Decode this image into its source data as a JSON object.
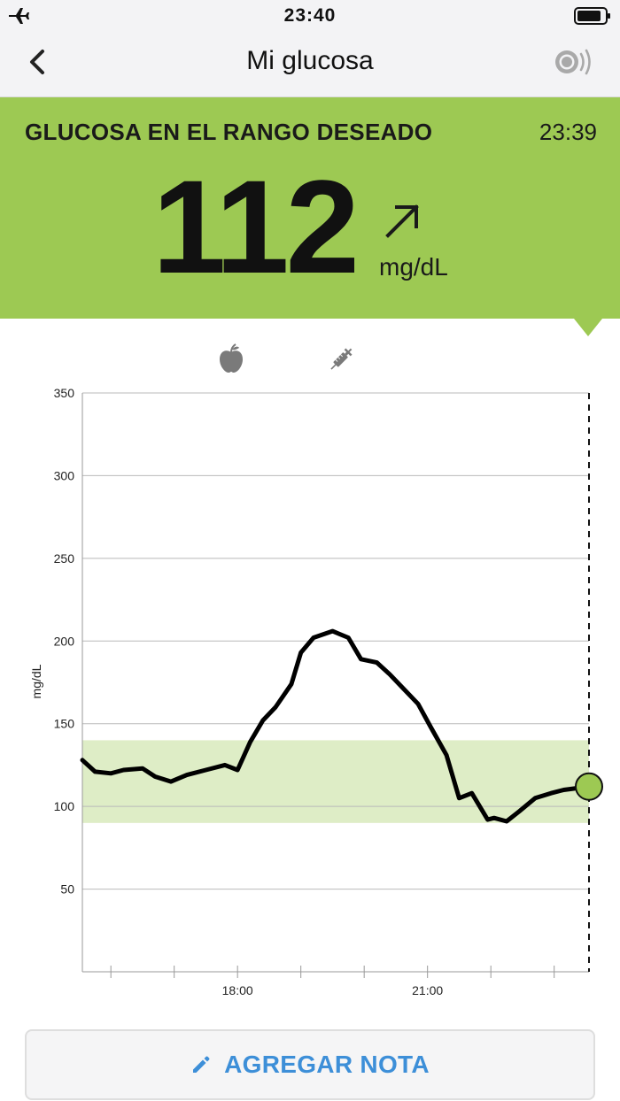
{
  "status_bar": {
    "time": "23:40"
  },
  "nav": {
    "title": "Mi glucosa"
  },
  "banner": {
    "label": "GLUCOSA EN EL RANGO DESEADO",
    "time": "23:39",
    "value": "112",
    "unit": "mg/dL",
    "trend": "rising-arrow"
  },
  "colors": {
    "banner": "#9dc953",
    "target_band": "#deedc6",
    "accent": "#3d8fd8"
  },
  "icons": [
    "airplane-icon",
    "battery-icon",
    "back-icon",
    "sensor-icon",
    "trend-arrow-icon",
    "apple-icon",
    "syringe-icon",
    "pencil-icon"
  ],
  "chart_data": {
    "type": "line",
    "ylabel": "mg/dL",
    "ylim": [
      0,
      350
    ],
    "yticks": [
      50,
      100,
      150,
      200,
      250,
      300,
      350
    ],
    "xticks": [
      {
        "label": "18:00",
        "x": 18
      },
      {
        "label": "21:00",
        "x": 21
      }
    ],
    "xlim": [
      15.55,
      23.55
    ],
    "target_range": [
      90,
      140
    ],
    "grid": true,
    "series": [
      {
        "x": [
          15.55,
          15.75,
          16.0,
          16.2,
          16.5,
          16.7,
          16.95,
          17.2,
          17.5,
          17.8,
          18.0,
          18.2,
          18.4,
          18.6,
          18.85,
          19.0,
          19.2,
          19.5,
          19.75,
          19.95,
          20.2,
          20.4,
          20.6,
          20.85,
          21.05,
          21.3,
          21.5,
          21.7,
          21.95,
          22.05,
          22.25,
          22.45,
          22.7,
          22.95,
          23.15,
          23.35,
          23.55
        ],
        "values": [
          128,
          121,
          120,
          122,
          123,
          118,
          115,
          119,
          122,
          125,
          122,
          139,
          152,
          160,
          174,
          193,
          202,
          206,
          202,
          189,
          187,
          180,
          172,
          162,
          148,
          131,
          105,
          108,
          92,
          93,
          91,
          97,
          105,
          108,
          110,
          111,
          112
        ]
      }
    ],
    "current_point": {
      "x": 23.55,
      "y": 112
    }
  },
  "footer": {
    "button_label": "AGREGAR NOTA"
  }
}
